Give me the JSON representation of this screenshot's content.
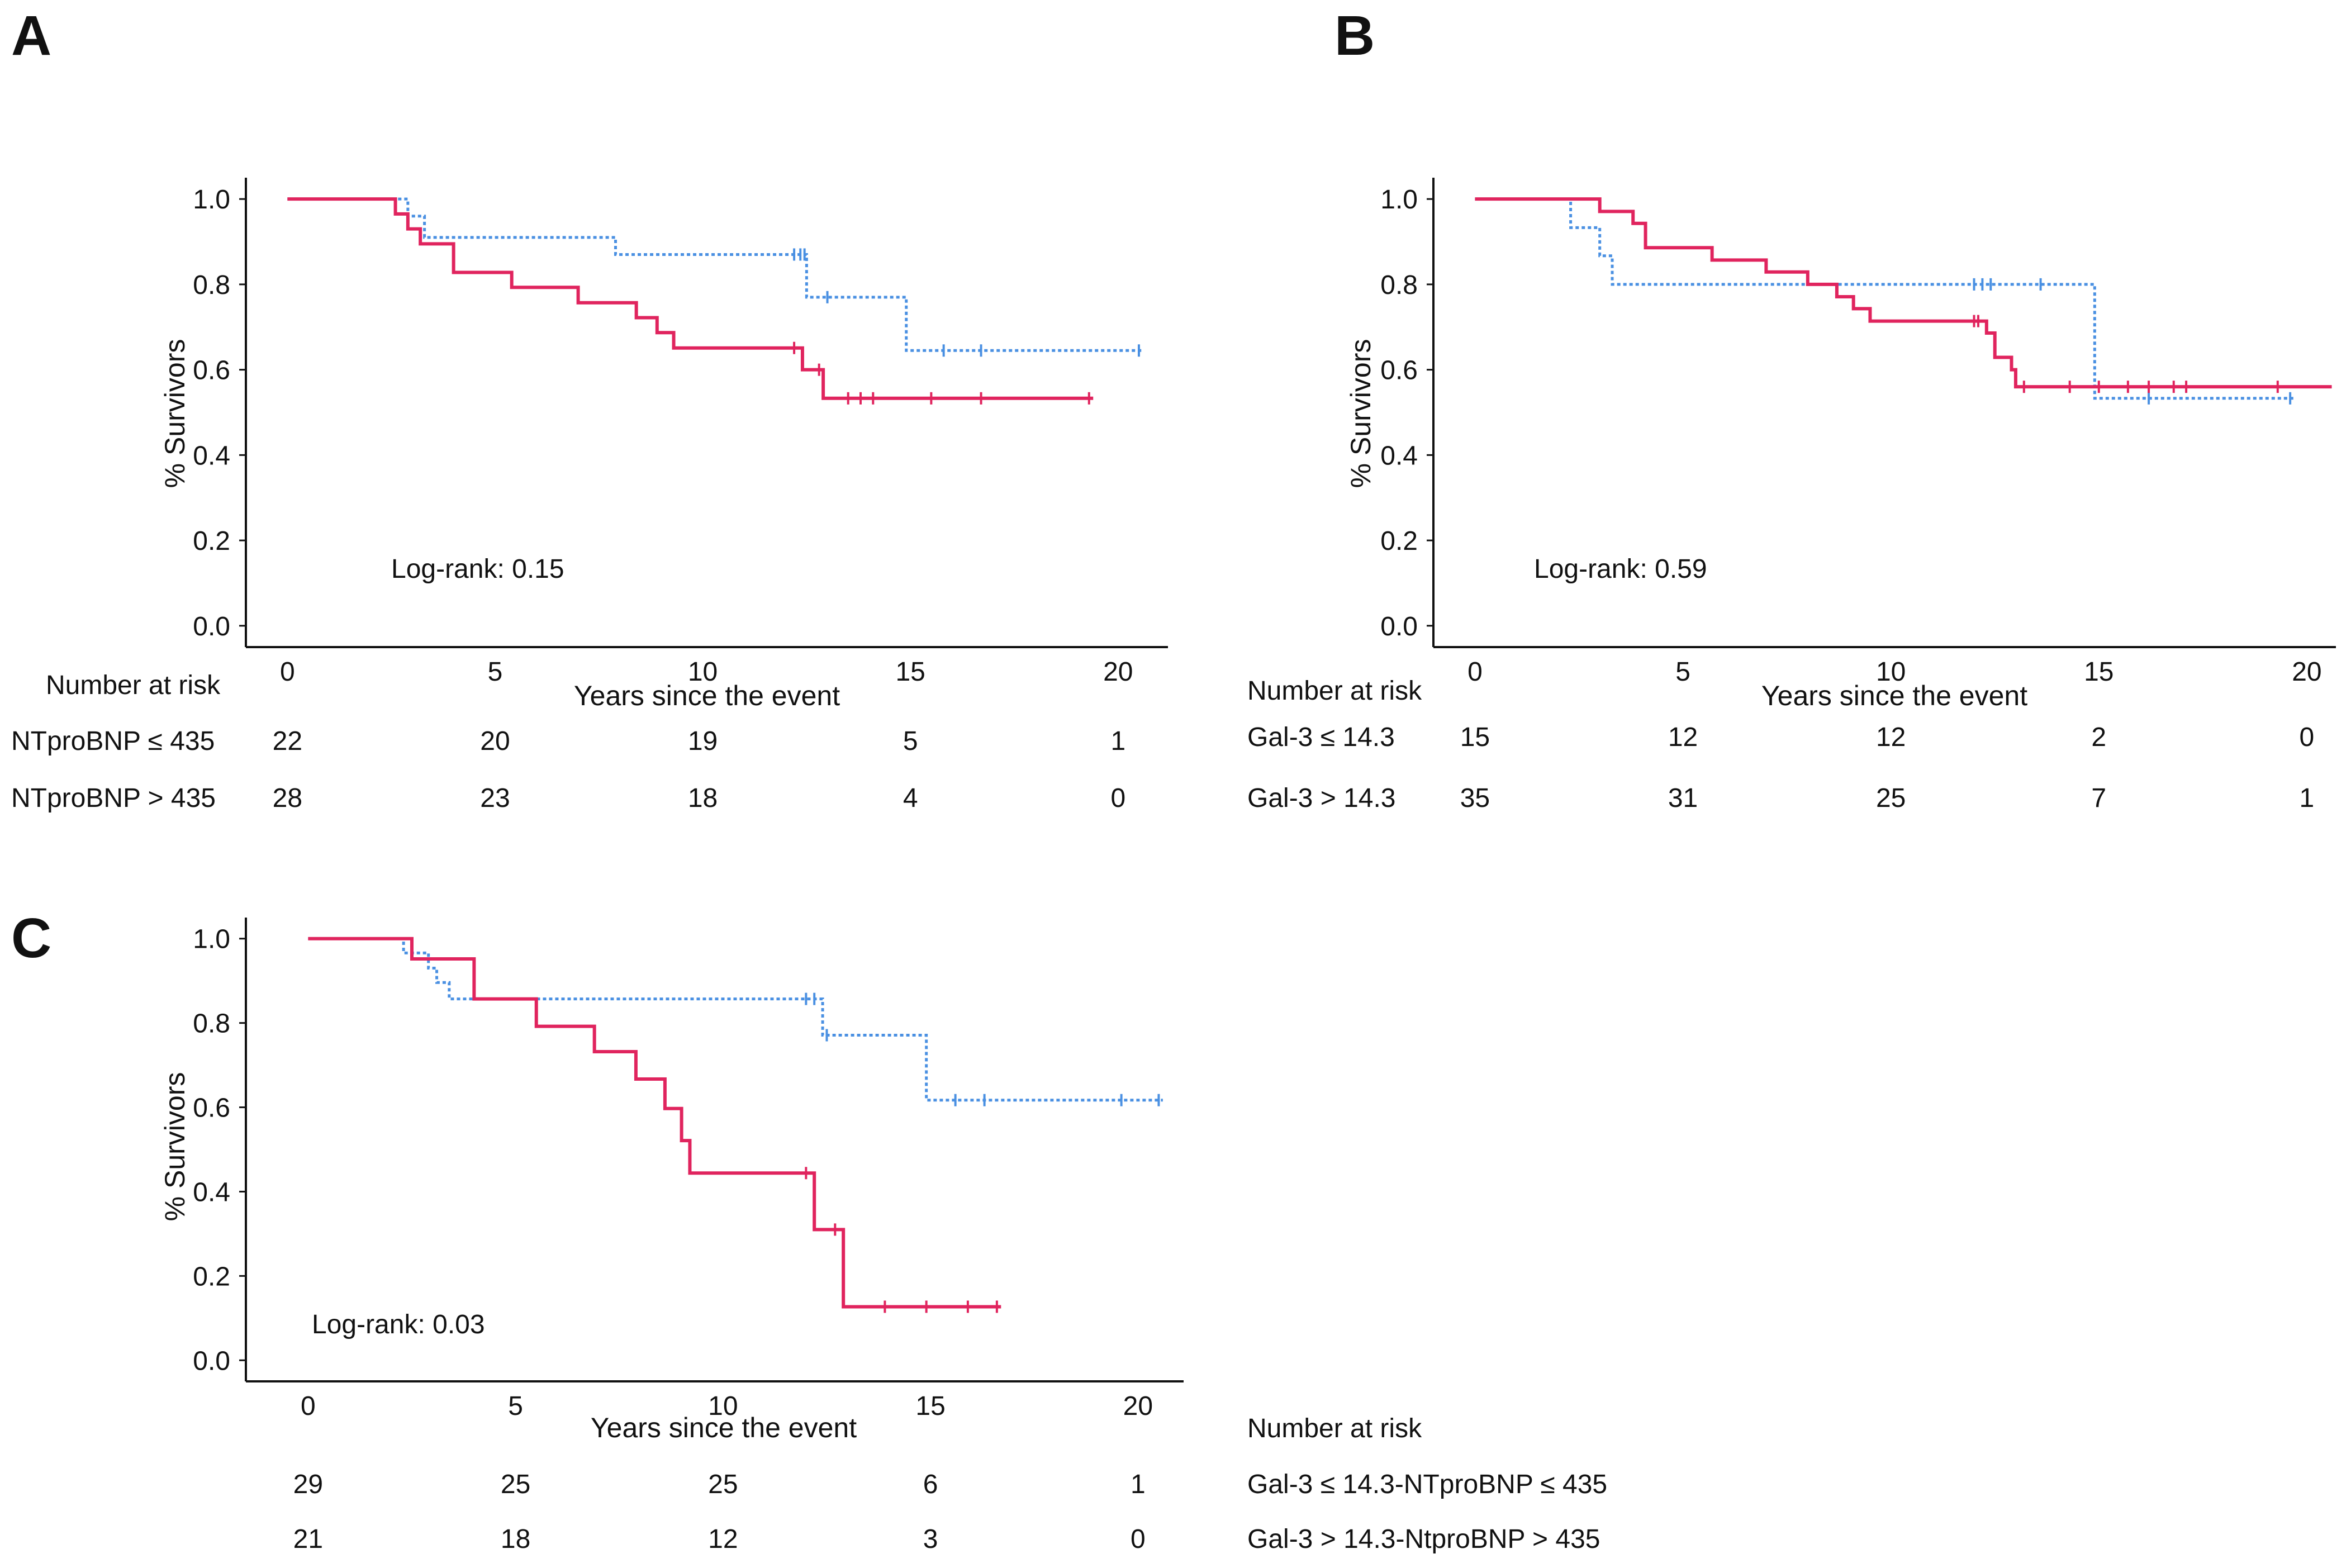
{
  "chart_data": [
    {
      "panel_label": "A",
      "type": "line",
      "step": true,
      "xlabel": "Years since the event",
      "ylabel": "% Survivors",
      "xticks": [
        "0",
        "5",
        "10",
        "15",
        "20"
      ],
      "yticks": [
        "0.0",
        "0.2",
        "0.4",
        "0.6",
        "0.8",
        "1.0"
      ],
      "xlim": [
        -1,
        21.2
      ],
      "ylim": [
        -0.05,
        1.05
      ],
      "annotation": "Log-rank: 0.15",
      "risk_table": {
        "title": "Number at risk",
        "times": [
          0,
          5,
          10,
          15,
          20
        ],
        "rows": [
          {
            "label": "NTproBNP ≤ 435",
            "values": [
              "22",
              "20",
              "19",
              "5",
              "1"
            ]
          },
          {
            "label": "NTproBNP > 435",
            "values": [
              "28",
              "23",
              "18",
              "4",
              "0"
            ]
          }
        ]
      },
      "series": [
        {
          "color": "#4a90e2",
          "style": "dotted",
          "points": [
            [
              0,
              1.0
            ],
            [
              2.2,
              1.0
            ],
            [
              2.9,
              0.96
            ],
            [
              3.3,
              0.91
            ],
            [
              7.9,
              0.87
            ],
            [
              12.5,
              0.77
            ],
            [
              14.9,
              0.645
            ],
            [
              20.6,
              0.645
            ]
          ],
          "censored": [
            [
              12.2,
              0.87
            ],
            [
              12.35,
              0.87
            ],
            [
              12.45,
              0.87
            ],
            [
              13.0,
              0.77
            ],
            [
              15.8,
              0.645
            ],
            [
              16.7,
              0.645
            ],
            [
              20.5,
              0.645
            ]
          ]
        },
        {
          "color": "#e0245e",
          "style": "solid",
          "points": [
            [
              0,
              1.0
            ],
            [
              2.3,
              1.0
            ],
            [
              2.6,
              0.965
            ],
            [
              2.9,
              0.93
            ],
            [
              3.2,
              0.895
            ],
            [
              4.0,
              0.828
            ],
            [
              5.4,
              0.793
            ],
            [
              7.0,
              0.757
            ],
            [
              8.4,
              0.722
            ],
            [
              8.9,
              0.687
            ],
            [
              9.3,
              0.651
            ],
            [
              12.4,
              0.6
            ],
            [
              12.9,
              0.533
            ],
            [
              19.4,
              0.533
            ]
          ],
          "censored": [
            [
              12.2,
              0.651
            ],
            [
              12.8,
              0.6
            ],
            [
              13.5,
              0.533
            ],
            [
              13.8,
              0.533
            ],
            [
              14.1,
              0.533
            ],
            [
              15.5,
              0.533
            ],
            [
              16.7,
              0.533
            ],
            [
              19.3,
              0.533
            ]
          ]
        }
      ]
    },
    {
      "panel_label": "B",
      "type": "line",
      "step": true,
      "xlabel": "Years since the event",
      "ylabel": "% Survivors",
      "xticks": [
        "0",
        "5",
        "10",
        "15",
        "20"
      ],
      "yticks": [
        "0.0",
        "0.2",
        "0.4",
        "0.6",
        "0.8",
        "1.0"
      ],
      "xlim": [
        -1,
        20.7
      ],
      "ylim": [
        -0.05,
        1.05
      ],
      "annotation": "Log-rank: 0.59",
      "risk_table": {
        "title": "Number at risk",
        "times": [
          0,
          5,
          10,
          15,
          20
        ],
        "rows": [
          {
            "label": "Gal-3 ≤ 14.3",
            "values": [
              "15",
              "12",
              "12",
              "2",
              "0"
            ]
          },
          {
            "label": "Gal-3 > 14.3",
            "values": [
              "35",
              "31",
              "25",
              "7",
              "1"
            ]
          }
        ]
      },
      "series": [
        {
          "color": "#4a90e2",
          "style": "dotted",
          "points": [
            [
              0,
              1.0
            ],
            [
              2.3,
              1.0
            ],
            [
              2.3,
              0.933
            ],
            [
              3.0,
              0.867
            ],
            [
              3.3,
              0.8
            ],
            [
              14.9,
              0.8
            ],
            [
              14.9,
              0.533
            ],
            [
              19.7,
              0.533
            ]
          ],
          "censored": [
            [
              12.0,
              0.8
            ],
            [
              12.2,
              0.8
            ],
            [
              12.4,
              0.8
            ],
            [
              13.6,
              0.8
            ],
            [
              16.2,
              0.533
            ],
            [
              19.6,
              0.533
            ]
          ]
        },
        {
          "color": "#e0245e",
          "style": "solid",
          "points": [
            [
              0,
              1.0
            ],
            [
              2.5,
              1.0
            ],
            [
              3.0,
              0.971
            ],
            [
              3.8,
              0.943
            ],
            [
              4.1,
              0.886
            ],
            [
              5.7,
              0.857
            ],
            [
              7.0,
              0.829
            ],
            [
              8.0,
              0.8
            ],
            [
              8.7,
              0.771
            ],
            [
              9.1,
              0.743
            ],
            [
              9.5,
              0.714
            ],
            [
              12.3,
              0.686
            ],
            [
              12.5,
              0.629
            ],
            [
              12.9,
              0.6
            ],
            [
              13.0,
              0.56
            ],
            [
              20.6,
              0.56
            ]
          ],
          "censored": [
            [
              12.0,
              0.714
            ],
            [
              12.1,
              0.714
            ],
            [
              13.2,
              0.56
            ],
            [
              14.3,
              0.56
            ],
            [
              15.0,
              0.56
            ],
            [
              15.7,
              0.56
            ],
            [
              16.2,
              0.56
            ],
            [
              16.8,
              0.56
            ],
            [
              17.1,
              0.56
            ],
            [
              19.3,
              0.56
            ]
          ]
        }
      ]
    },
    {
      "panel_label": "C",
      "type": "line",
      "step": true,
      "xlabel": "Years since the event",
      "ylabel": "% Survivors",
      "xticks": [
        "0",
        "5",
        "10",
        "15",
        "20"
      ],
      "yticks": [
        "0.0",
        "0.2",
        "0.4",
        "0.6",
        "0.8",
        "1.0"
      ],
      "xlim": [
        -1.5,
        21.1
      ],
      "ylim": [
        -0.05,
        1.05
      ],
      "annotation": "Log-rank: 0.03",
      "risk_table": {
        "title": "Number at risk",
        "times": [
          0,
          5,
          10,
          15,
          20
        ],
        "rows": [
          {
            "label": "Gal-3 ≤ 14.3-NTproBNP ≤ 435",
            "values": [
              "29",
              "25",
              "25",
              "6",
              "1"
            ]
          },
          {
            "label": "Gal-3 > 14.3-NtproBNP > 435",
            "values": [
              "21",
              "18",
              "12",
              "3",
              "0"
            ]
          }
        ]
      },
      "series": [
        {
          "color": "#4a90e2",
          "style": "dotted",
          "points": [
            [
              0,
              1.0
            ],
            [
              2.3,
              1.0
            ],
            [
              2.3,
              0.966
            ],
            [
              2.9,
              0.93
            ],
            [
              3.1,
              0.896
            ],
            [
              3.4,
              0.857
            ],
            [
              12.4,
              0.857
            ],
            [
              12.4,
              0.771
            ],
            [
              14.9,
              0.771
            ],
            [
              14.9,
              0.617
            ],
            [
              20.6,
              0.617
            ]
          ],
          "censored": [
            [
              12.0,
              0.857
            ],
            [
              12.2,
              0.857
            ],
            [
              12.5,
              0.771
            ],
            [
              15.6,
              0.617
            ],
            [
              16.3,
              0.617
            ],
            [
              19.6,
              0.617
            ],
            [
              20.5,
              0.617
            ]
          ]
        },
        {
          "color": "#e0245e",
          "style": "solid",
          "points": [
            [
              0,
              1.0
            ],
            [
              2.5,
              1.0
            ],
            [
              2.5,
              0.952
            ],
            [
              4.0,
              0.952
            ],
            [
              4.0,
              0.857
            ],
            [
              5.5,
              0.857
            ],
            [
              5.5,
              0.792
            ],
            [
              6.9,
              0.792
            ],
            [
              6.9,
              0.732
            ],
            [
              7.9,
              0.732
            ],
            [
              7.9,
              0.667
            ],
            [
              8.6,
              0.667
            ],
            [
              8.6,
              0.597
            ],
            [
              9.0,
              0.597
            ],
            [
              9.0,
              0.521
            ],
            [
              9.2,
              0.521
            ],
            [
              9.2,
              0.444
            ],
            [
              12.2,
              0.444
            ],
            [
              12.2,
              0.31
            ],
            [
              12.9,
              0.31
            ],
            [
              12.9,
              0.127
            ],
            [
              16.7,
              0.127
            ]
          ],
          "censored": [
            [
              12.0,
              0.444
            ],
            [
              12.7,
              0.31
            ],
            [
              13.9,
              0.127
            ],
            [
              14.9,
              0.127
            ],
            [
              15.9,
              0.127
            ],
            [
              16.6,
              0.127
            ]
          ]
        }
      ]
    }
  ]
}
